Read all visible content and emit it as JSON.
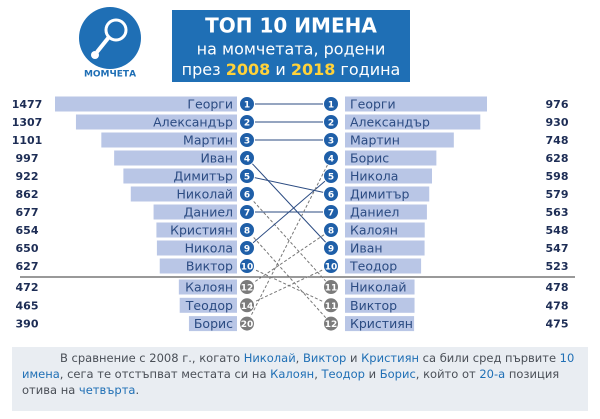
{
  "chart_data": {
    "type": "ranking",
    "logo_label": "МОМЧЕТА",
    "title": "ТОП 10 ИМЕНА",
    "subtitle": "на момчетата, родени",
    "subtitle2": [
      {
        "text": "през "
      },
      {
        "text": "2008",
        "color": "#ffd23a"
      },
      {
        "text": " и "
      },
      {
        "text": "2018",
        "color": "#ffd23a"
      },
      {
        "text": " година"
      }
    ],
    "bar_color": "#b9c6e6",
    "left": {
      "top": [
        {
          "rank": 1,
          "name": "Георги",
          "value": 1477
        },
        {
          "rank": 2,
          "name": "Александър",
          "value": 1307
        },
        {
          "rank": 3,
          "name": "Мартин",
          "value": 1101
        },
        {
          "rank": 4,
          "name": "Иван",
          "value": 997
        },
        {
          "rank": 5,
          "name": "Димитър",
          "value": 922
        },
        {
          "rank": 6,
          "name": "Николай",
          "value": 862
        },
        {
          "rank": 7,
          "name": "Даниел",
          "value": 677
        },
        {
          "rank": 8,
          "name": "Кристиян",
          "value": 654
        },
        {
          "rank": 9,
          "name": "Никола",
          "value": 650
        },
        {
          "rank": 10,
          "name": "Виктор",
          "value": 627
        }
      ],
      "rest": [
        {
          "rank": 12,
          "name": "Калоян",
          "value": 472
        },
        {
          "rank": 14,
          "name": "Теодор",
          "value": 465
        },
        {
          "rank": 20,
          "name": "Борис",
          "value": 390
        }
      ]
    },
    "right": {
      "top": [
        {
          "rank": 1,
          "name": "Георги",
          "value": 976
        },
        {
          "rank": 2,
          "name": "Александър",
          "value": 930
        },
        {
          "rank": 3,
          "name": "Мартин",
          "value": 748
        },
        {
          "rank": 4,
          "name": "Борис",
          "value": 628
        },
        {
          "rank": 5,
          "name": "Никола",
          "value": 598
        },
        {
          "rank": 6,
          "name": "Димитър",
          "value": 579
        },
        {
          "rank": 7,
          "name": "Даниел",
          "value": 563
        },
        {
          "rank": 8,
          "name": "Калоян",
          "value": 548
        },
        {
          "rank": 9,
          "name": "Иван",
          "value": 547
        },
        {
          "rank": 10,
          "name": "Теодор",
          "value": 523
        }
      ],
      "rest": [
        {
          "rank": 11,
          "name": "Николай",
          "value": 478
        },
        {
          "rank": 11,
          "name": "Виктор",
          "value": 478
        },
        {
          "rank": 12,
          "name": "Кристиян",
          "value": 475
        }
      ]
    },
    "footer": [
      {
        "text": "В сравнение с 2008 г., когато "
      },
      {
        "text": "Николай",
        "color": "#1f6fb5"
      },
      {
        "text": ", "
      },
      {
        "text": "Виктор",
        "color": "#1f6fb5"
      },
      {
        "text": " и "
      },
      {
        "text": "Кристиян",
        "color": "#1f6fb5"
      },
      {
        "text": " са били сред първите "
      },
      {
        "text": "10 имена",
        "color": "#1f6fb5"
      },
      {
        "text": ", сега те отстъпват местата си на "
      },
      {
        "text": "Калоян",
        "color": "#1f6fb5"
      },
      {
        "text": ", "
      },
      {
        "text": "Теодор",
        "color": "#1f6fb5"
      },
      {
        "text": " и "
      },
      {
        "text": "Борис",
        "color": "#1f6fb5"
      },
      {
        "text": ", който от "
      },
      {
        "text": "20-а",
        "color": "#1f6fb5"
      },
      {
        "text": " позиция отива на "
      },
      {
        "text": "четвърта",
        "color": "#1f6fb5"
      },
      {
        "text": "."
      }
    ]
  }
}
